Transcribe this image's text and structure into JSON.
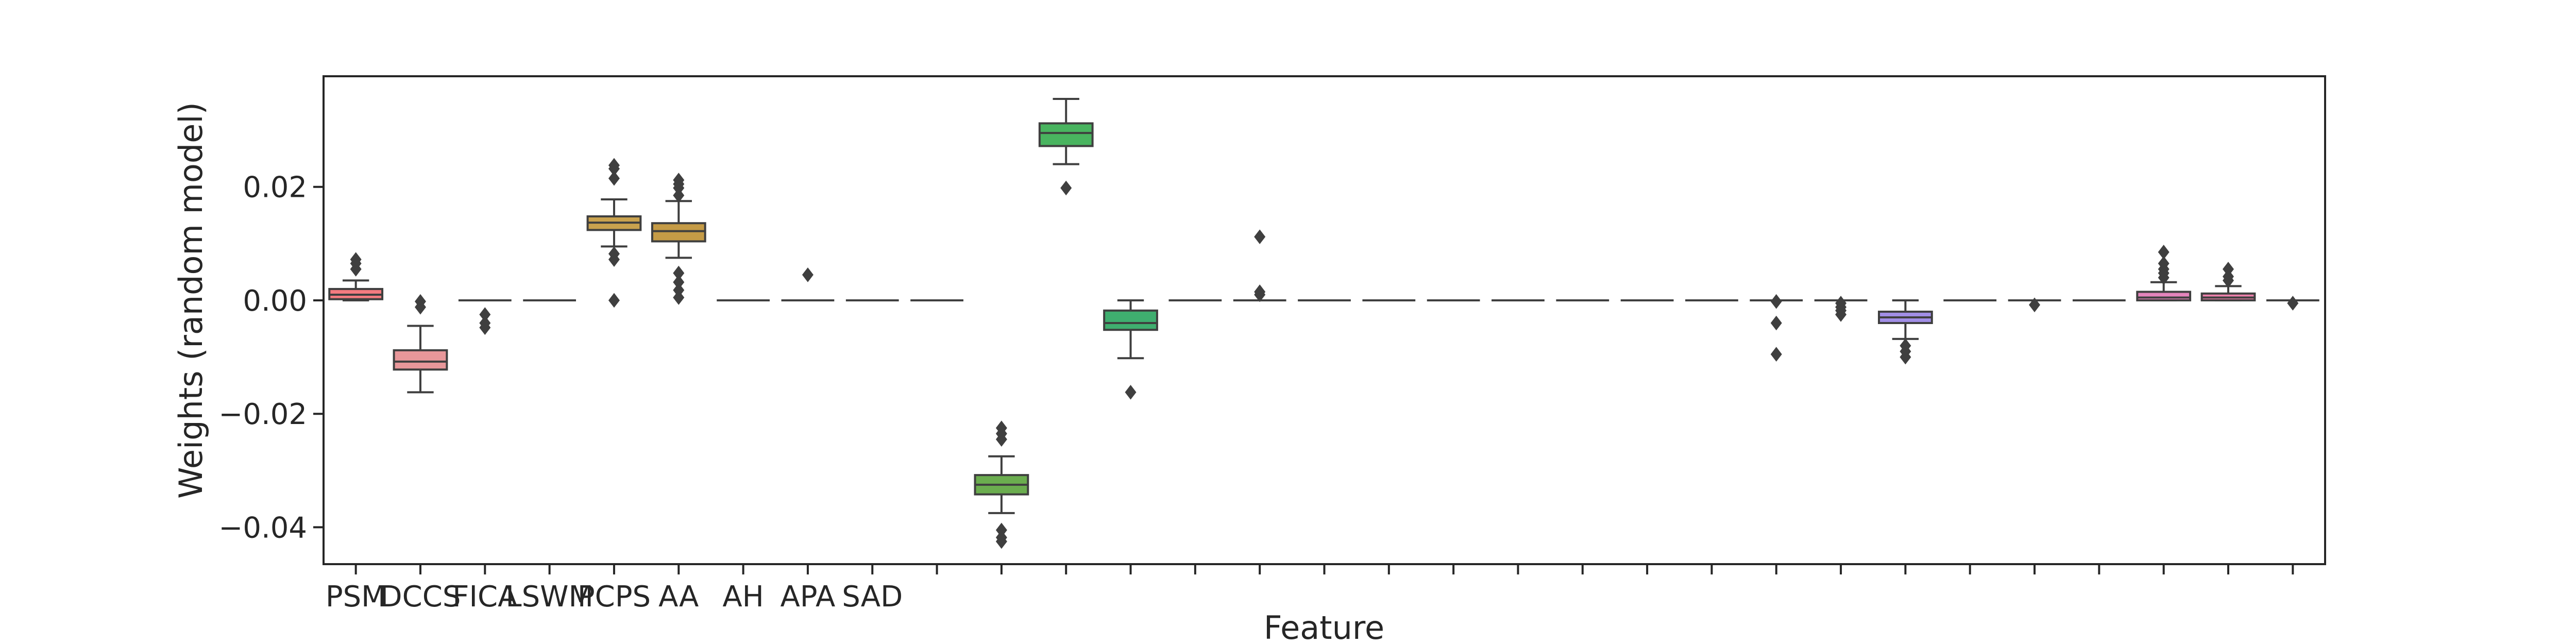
{
  "chart_data": {
    "type": "box",
    "xlabel": "Feature",
    "ylabel": "Weights (random model)",
    "ylim": [
      -0.0465,
      0.0395
    ],
    "yticks": [
      0.02,
      0.0,
      -0.02,
      -0.04
    ],
    "ytick_labels": [
      "0.02",
      "0.00",
      "−0.02",
      "−0.04"
    ],
    "num_categories": 31,
    "xtick_labels": [
      "PSM",
      "DCCS",
      "FICA",
      "LSWM",
      "PCPS",
      "AA",
      "AH",
      "APA",
      "SAD"
    ],
    "grid": false,
    "boxes": [
      {
        "index": 0,
        "color": "#f37b80",
        "q1": 0.0002,
        "median": 0.001,
        "q3": 0.002,
        "whisker_low": 0.0,
        "whisker_high": 0.0035,
        "outliers": [
          0.0055,
          0.0065,
          0.0072
        ]
      },
      {
        "index": 1,
        "color": "#e8979a",
        "q1": -0.0122,
        "median": -0.0108,
        "q3": -0.0088,
        "whisker_low": -0.0162,
        "whisker_high": -0.0045,
        "outliers": [
          -0.0012,
          -0.0002
        ]
      },
      {
        "index": 2,
        "color": "#d6a1a3",
        "q1": 0.0,
        "median": 0.0,
        "q3": 0.0,
        "whisker_low": 0.0,
        "whisker_high": 0.0,
        "outliers": [
          -0.0025,
          -0.004,
          -0.0048
        ]
      },
      {
        "index": 3,
        "color": "#d9b37c",
        "q1": 0.0,
        "median": 0.0,
        "q3": 0.0,
        "whisker_low": 0.0,
        "whisker_high": 0.0,
        "outliers": []
      },
      {
        "index": 4,
        "color": "#c9a24e",
        "q1": 0.0124,
        "median": 0.0137,
        "q3": 0.0148,
        "whisker_low": 0.0095,
        "whisker_high": 0.0178,
        "outliers": [
          0.0072,
          0.0082,
          0.0215,
          0.0232,
          0.0238,
          0.0
        ]
      },
      {
        "index": 5,
        "color": "#c59b46",
        "q1": 0.0104,
        "median": 0.0122,
        "q3": 0.0136,
        "whisker_low": 0.0075,
        "whisker_high": 0.0175,
        "outliers": [
          0.0048,
          0.0032,
          0.0018,
          0.0005,
          0.0185,
          0.0198,
          0.0205,
          0.0212
        ]
      },
      {
        "index": 6,
        "color": "#b7a656",
        "q1": 0.0,
        "median": 0.0,
        "q3": 0.0,
        "whisker_low": 0.0,
        "whisker_high": 0.0,
        "outliers": []
      },
      {
        "index": 7,
        "color": "#a8a95b",
        "q1": 0.0,
        "median": 0.0,
        "q3": 0.0,
        "whisker_low": 0.0,
        "whisker_high": 0.0,
        "outliers": [
          0.0045
        ]
      },
      {
        "index": 8,
        "color": "#99aa5c",
        "q1": 0.0,
        "median": 0.0,
        "q3": 0.0,
        "whisker_low": 0.0,
        "whisker_high": 0.0,
        "outliers": []
      },
      {
        "index": 9,
        "color": "#8cae5c",
        "q1": 0.0,
        "median": 0.0,
        "q3": 0.0,
        "whisker_low": 0.0,
        "whisker_high": 0.0,
        "outliers": []
      },
      {
        "index": 10,
        "color": "#6bad4f",
        "q1": -0.0342,
        "median": -0.0325,
        "q3": -0.0308,
        "whisker_low": -0.0375,
        "whisker_high": -0.0275,
        "outliers": [
          -0.0225,
          -0.0235,
          -0.0245,
          -0.0405,
          -0.0418,
          -0.0425
        ]
      },
      {
        "index": 11,
        "color": "#49b45f",
        "q1": 0.0272,
        "median": 0.0295,
        "q3": 0.0312,
        "whisker_low": 0.024,
        "whisker_high": 0.0355,
        "outliers": [
          0.0198
        ]
      },
      {
        "index": 12,
        "color": "#3fae6f",
        "q1": -0.0052,
        "median": -0.004,
        "q3": -0.0018,
        "whisker_low": -0.0102,
        "whisker_high": 0.0,
        "outliers": [
          -0.0162
        ]
      },
      {
        "index": 13,
        "color": "#40ad84",
        "q1": 0.0,
        "median": 0.0,
        "q3": 0.0,
        "whisker_low": 0.0,
        "whisker_high": 0.0,
        "outliers": []
      },
      {
        "index": 14,
        "color": "#42ab93",
        "q1": 0.0,
        "median": 0.0,
        "q3": 0.0,
        "whisker_low": 0.0,
        "whisker_high": 0.0,
        "outliers": [
          0.001,
          0.0015,
          0.0112
        ]
      },
      {
        "index": 15,
        "color": "#43a99e",
        "q1": 0.0,
        "median": 0.0,
        "q3": 0.0,
        "whisker_low": 0.0,
        "whisker_high": 0.0,
        "outliers": []
      },
      {
        "index": 16,
        "color": "#45a7a8",
        "q1": 0.0,
        "median": 0.0,
        "q3": 0.0,
        "whisker_low": 0.0,
        "whisker_high": 0.0,
        "outliers": []
      },
      {
        "index": 17,
        "color": "#46a6b1",
        "q1": 0.0,
        "median": 0.0,
        "q3": 0.0,
        "whisker_low": 0.0,
        "whisker_high": 0.0,
        "outliers": []
      },
      {
        "index": 18,
        "color": "#48a4ba",
        "q1": 0.0,
        "median": 0.0,
        "q3": 0.0,
        "whisker_low": 0.0,
        "whisker_high": 0.0,
        "outliers": []
      },
      {
        "index": 19,
        "color": "#4aa2c4",
        "q1": 0.0,
        "median": 0.0,
        "q3": 0.0,
        "whisker_low": 0.0,
        "whisker_high": 0.0,
        "outliers": []
      },
      {
        "index": 20,
        "color": "#4ea0d0",
        "q1": 0.0,
        "median": 0.0,
        "q3": 0.0,
        "whisker_low": 0.0,
        "whisker_high": 0.0,
        "outliers": []
      },
      {
        "index": 21,
        "color": "#5a9cdc",
        "q1": 0.0,
        "median": 0.0,
        "q3": 0.0,
        "whisker_low": 0.0,
        "whisker_high": 0.0,
        "outliers": []
      },
      {
        "index": 22,
        "color": "#7096e3",
        "q1": 0.0,
        "median": 0.0,
        "q3": 0.0,
        "whisker_low": 0.0,
        "whisker_high": 0.0,
        "outliers": [
          -0.004,
          -0.0095,
          -0.0002
        ]
      },
      {
        "index": 23,
        "color": "#8990e4",
        "q1": 0.0,
        "median": 0.0,
        "q3": 0.0,
        "whisker_low": 0.0,
        "whisker_high": 0.0,
        "outliers": [
          -0.0005,
          -0.0012,
          -0.0018,
          -0.0025
        ]
      },
      {
        "index": 24,
        "color": "#a18ee6",
        "q1": -0.004,
        "median": -0.003,
        "q3": -0.002,
        "whisker_low": -0.0068,
        "whisker_high": 0.0,
        "outliers": [
          -0.008,
          -0.009,
          -0.01
        ]
      },
      {
        "index": 25,
        "color": "#b68ce2",
        "q1": 0.0,
        "median": 0.0,
        "q3": 0.0,
        "whisker_low": 0.0,
        "whisker_high": 0.0,
        "outliers": []
      },
      {
        "index": 26,
        "color": "#c98ad9",
        "q1": 0.0,
        "median": 0.0,
        "q3": 0.0,
        "whisker_low": 0.0,
        "whisker_high": 0.0,
        "outliers": [
          -0.0008
        ]
      },
      {
        "index": 27,
        "color": "#d988cc",
        "q1": 0.0,
        "median": 0.0,
        "q3": 0.0,
        "whisker_low": 0.0,
        "whisker_high": 0.0,
        "outliers": []
      },
      {
        "index": 28,
        "color": "#e484bc",
        "q1": 0.0,
        "median": 0.0005,
        "q3": 0.0015,
        "whisker_low": 0.0,
        "whisker_high": 0.0032,
        "outliers": [
          0.004,
          0.0048,
          0.0055,
          0.0065,
          0.0085
        ]
      },
      {
        "index": 29,
        "color": "#ec80ab",
        "q1": 0.0,
        "median": 0.0005,
        "q3": 0.0012,
        "whisker_low": 0.0,
        "whisker_high": 0.0025,
        "outliers": [
          0.0035,
          0.0042,
          0.0055
        ]
      },
      {
        "index": 30,
        "color": "#f17d98",
        "q1": 0.0,
        "median": 0.0,
        "q3": 0.0,
        "whisker_low": 0.0,
        "whisker_high": 0.0,
        "outliers": [
          -0.0005
        ]
      }
    ]
  }
}
